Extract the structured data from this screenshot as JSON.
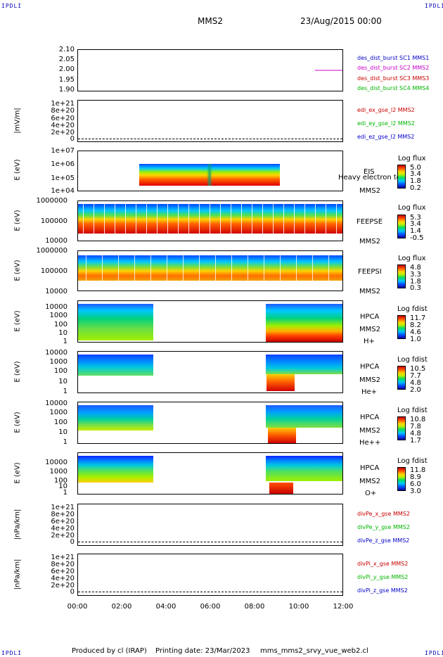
{
  "corners": {
    "tl": "IPDLI",
    "tr": "IPDLI",
    "bl": "IPDLI",
    "br": "IPDLI"
  },
  "header": {
    "mission": "MMS2",
    "date": "23/Aug/2015 00:00"
  },
  "footer": {
    "produced": "Produced by cl (IRAP)",
    "printing": "Printing date: 23/Mar/2023",
    "script": "mms_mms2_srvy_vue_web2.cl"
  },
  "colors": {
    "blue": "#0000c8",
    "magenta": "#c800c8",
    "red": "#c80000",
    "green": "#00b400"
  },
  "xaxis": {
    "ticks": [
      "00:00",
      "02:00",
      "04:00",
      "06:00",
      "08:00",
      "10:00",
      "12:00"
    ]
  },
  "chart_data": [
    {
      "type": "line",
      "panel": "distribution-burst",
      "ylim": [
        1.9,
        2.1
      ],
      "yticks": [
        "2.10",
        "2.05",
        "2.00",
        "1.95",
        "1.90"
      ],
      "legend": [
        "des_dist_burst SC1 MMS1",
        "des_dist_burst SC2 MMS2",
        "des_dist_burst SC3 MMS3",
        "des_dist_burst SC4 MMS4"
      ],
      "series": [
        {
          "name": "des_dist_burst SC2 MMS2",
          "x": [
            "10:45",
            "12:00"
          ],
          "values": [
            2.0,
            2.0
          ]
        }
      ]
    },
    {
      "type": "line",
      "panel": "edi-efield",
      "ylabel": "|mV/m|",
      "yticks": [
        "1e+21",
        "8e+20",
        "6e+20",
        "4e+20",
        "2e+20",
        "0"
      ],
      "legend": [
        "edi_ex_gse_l2 MMS2",
        "edi_ey_gse_l2 MMS2",
        "edi_ez_gse_l2 MMS2"
      ]
    },
    {
      "type": "heatmap",
      "panel": "eis",
      "ylabel": "E (eV)",
      "yticks": [
        "1e+07",
        "1e+06",
        "1e+05",
        "1e+04"
      ],
      "instrument": [
        "EIS",
        "MMS2"
      ],
      "overlay": "Heavy electron to",
      "cbar_title": "Log flux",
      "cbar_ticks": [
        "5.0",
        "3.4",
        "1.8",
        "0.2"
      ],
      "x_range": [
        "02:45",
        "09:00"
      ]
    },
    {
      "type": "heatmap",
      "panel": "feeps-electron",
      "ylabel": "E (eV)",
      "yticks": [
        "1000000",
        "100000",
        "10000"
      ],
      "instrument": [
        "FEEPSE",
        "MMS2"
      ],
      "cbar_title": "Log flux",
      "cbar_ticks": [
        "5.3",
        "3.4",
        "1.4",
        "-0.5"
      ]
    },
    {
      "type": "heatmap",
      "panel": "feeps-ion",
      "ylabel": "E (eV)",
      "yticks": [
        "1000000",
        "100000",
        "10000"
      ],
      "instrument": [
        "FEEPSI",
        "MMS2"
      ],
      "cbar_title": "Log flux",
      "cbar_ticks": [
        "4.8",
        "3.3",
        "1.8",
        "0.3"
      ]
    },
    {
      "type": "heatmap",
      "panel": "hpca-h",
      "ylabel": "E (eV)",
      "yticks": [
        "10000",
        "1000",
        "100",
        "10",
        "1"
      ],
      "instrument": [
        "HPCA",
        "MMS2",
        "H+"
      ],
      "cbar_title": "Log fdist",
      "cbar_ticks": [
        "11.7",
        "8.2",
        "4.6",
        "1.0"
      ]
    },
    {
      "type": "heatmap",
      "panel": "hpca-he",
      "ylabel": "E (eV)",
      "yticks": [
        "10000",
        "1000",
        "100",
        "10",
        "1"
      ],
      "instrument": [
        "HPCA",
        "MMS2",
        "He+"
      ],
      "cbar_title": "Log fdist",
      "cbar_ticks": [
        "10.5",
        "7.7",
        "4.8",
        "2.0"
      ]
    },
    {
      "type": "heatmap",
      "panel": "hpca-he2",
      "ylabel": "E (eV)",
      "yticks": [
        "10000",
        "1000",
        "100",
        "10",
        "1"
      ],
      "instrument": [
        "HPCA",
        "MMS2",
        "He++"
      ],
      "cbar_title": "Log fdist",
      "cbar_ticks": [
        "10.8",
        "7.8",
        "4.8",
        "1.7"
      ]
    },
    {
      "type": "heatmap",
      "panel": "hpca-o",
      "ylabel": "E (eV)",
      "yticks": [
        "10000",
        "1000",
        "100",
        "10",
        "1"
      ],
      "instrument": [
        "HPCA",
        "MMS2",
        "O+"
      ],
      "cbar_title": "Log fdist",
      "cbar_ticks": [
        "11.8",
        "8.9",
        "6.0",
        "3.0"
      ]
    },
    {
      "type": "line",
      "panel": "divpe",
      "ylabel": "|nPa/km|",
      "yticks": [
        "1e+21",
        "8e+20",
        "6e+20",
        "4e+20",
        "2e+20",
        "0"
      ],
      "legend": [
        "divPe_x_gse MMS2",
        "divPe_y_gse MMS2",
        "divPe_z_gse MMS2"
      ]
    },
    {
      "type": "line",
      "panel": "divpi",
      "ylabel": "|nPa/km|",
      "yticks": [
        "1e+21",
        "8e+20",
        "6e+20",
        "4e+20",
        "2e+20",
        "0"
      ],
      "legend": [
        "divPi_x_gse MMS2",
        "divPi_y_gse MMS2",
        "divPi_z_gse MMS2"
      ]
    }
  ]
}
